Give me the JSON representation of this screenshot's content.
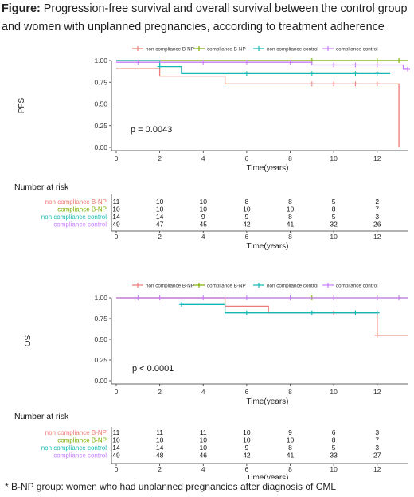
{
  "figure": {
    "caption_label": "Figure:",
    "caption_text": " Progression-free survival and overall survival between the control group and women with unplanned pregnancies, according to treatment adherence",
    "footnote": "* B-NP group: women who had unplanned pregnancies after diagnosis of CML"
  },
  "colors": {
    "non_compliance_bnp": "#f07a74",
    "compliance_bnp": "#7cae00",
    "non_compliance_control": "#14b8b3",
    "compliance_control": "#c77cff"
  },
  "chart_data": [
    {
      "type": "line",
      "ylabel": "PFS",
      "xlabel": "Time(years)",
      "xlim": [
        0,
        13.4
      ],
      "ylim": [
        0,
        1
      ],
      "yticks": [
        "0.00",
        "0.25",
        "0.50",
        "0.75",
        "1.00"
      ],
      "xticks": [
        "0",
        "2",
        "4",
        "6",
        "8",
        "10",
        "12"
      ],
      "annotation": "p = 0.0043",
      "legend": [
        "non compliance B-NP",
        "compliance B-NP",
        "non compliance control",
        "compliance control"
      ],
      "series": [
        {
          "name": "non compliance B-NP",
          "steps": [
            [
              0,
              0.91
            ],
            [
              2,
              0.91
            ],
            [
              2,
              0.82
            ],
            [
              5,
              0.82
            ],
            [
              5,
              0.73
            ],
            [
              13,
              0.73
            ],
            [
              13,
              0.0
            ]
          ],
          "censor": [
            [
              9,
              0.73
            ],
            [
              10,
              0.73
            ],
            [
              11,
              0.73
            ],
            [
              12,
              0.73
            ]
          ]
        },
        {
          "name": "compliance B-NP",
          "steps": [
            [
              0,
              1.0
            ],
            [
              13.4,
              1.0
            ]
          ],
          "censor": [
            [
              9,
              1.0
            ],
            [
              12,
              1.0
            ],
            [
              13,
              1.0
            ]
          ]
        },
        {
          "name": "non compliance control",
          "steps": [
            [
              0,
              1.0
            ],
            [
              2,
              1.0
            ],
            [
              2,
              0.93
            ],
            [
              3,
              0.93
            ],
            [
              3,
              0.85
            ],
            [
              12.6,
              0.85
            ]
          ],
          "censor": [
            [
              2,
              0.93
            ],
            [
              6,
              0.85
            ],
            [
              9,
              0.85
            ],
            [
              11,
              0.85
            ],
            [
              12,
              0.85
            ]
          ]
        },
        {
          "name": "compliance control",
          "steps": [
            [
              0,
              0.98
            ],
            [
              9,
              0.98
            ],
            [
              9,
              0.95
            ],
            [
              13.2,
              0.95
            ],
            [
              13.2,
              0.9
            ],
            [
              13.4,
              0.9
            ]
          ],
          "censor": [
            [
              1,
              0.98
            ],
            [
              4,
              0.98
            ],
            [
              6,
              0.98
            ],
            [
              8,
              0.98
            ],
            [
              10,
              0.95
            ],
            [
              11,
              0.95
            ],
            [
              12,
              0.95
            ],
            [
              13.4,
              0.9
            ]
          ]
        }
      ],
      "risk_table": {
        "title": "Number at risk",
        "xlabel": "Time(years)",
        "times": [
          "0",
          "2",
          "4",
          "6",
          "8",
          "10",
          "12"
        ],
        "rows": [
          {
            "label": "non compliance B-NP",
            "values": [
              "11",
              "10",
              "10",
              "8",
              "8",
              "5",
              "2"
            ]
          },
          {
            "label": "compliance B-NP",
            "values": [
              "10",
              "10",
              "10",
              "10",
              "10",
              "8",
              "7"
            ]
          },
          {
            "label": "non compliance control",
            "values": [
              "14",
              "14",
              "9",
              "9",
              "8",
              "5",
              "3"
            ]
          },
          {
            "label": "compliance control",
            "values": [
              "49",
              "47",
              "45",
              "42",
              "41",
              "32",
              "26"
            ]
          }
        ]
      }
    },
    {
      "type": "line",
      "ylabel": "OS",
      "xlabel": "Time(years)",
      "xlim": [
        0,
        13.4
      ],
      "ylim": [
        0,
        1
      ],
      "yticks": [
        "0.00",
        "0.25",
        "0.50",
        "0.75",
        "1.00"
      ],
      "xticks": [
        "0",
        "2",
        "4",
        "6",
        "8",
        "10",
        "12"
      ],
      "annotation": "p < 0.0001",
      "legend": [
        "non compliance B-NP",
        "compliance B-NP",
        "non compliance control",
        "compliance control"
      ],
      "series": [
        {
          "name": "non compliance B-NP",
          "steps": [
            [
              0,
              1.0
            ],
            [
              5,
              1.0
            ],
            [
              5,
              0.9
            ],
            [
              7,
              0.9
            ],
            [
              7,
              0.82
            ],
            [
              12,
              0.82
            ],
            [
              12,
              0.55
            ],
            [
              13.4,
              0.55
            ]
          ],
          "censor": [
            [
              10,
              0.82
            ],
            [
              11,
              0.82
            ],
            [
              12,
              0.55
            ]
          ]
        },
        {
          "name": "compliance B-NP",
          "steps": [
            [
              0,
              1.0
            ],
            [
              13.4,
              1.0
            ]
          ],
          "censor": [
            [
              9,
              1.0
            ],
            [
              12,
              1.0
            ],
            [
              13,
              1.0
            ]
          ]
        },
        {
          "name": "non compliance control",
          "steps": [
            [
              3,
              0.92
            ],
            [
              5,
              0.92
            ],
            [
              5,
              0.82
            ],
            [
              12,
              0.82
            ]
          ],
          "censor": [
            [
              3,
              0.92
            ],
            [
              6,
              0.82
            ],
            [
              9,
              0.82
            ],
            [
              11,
              0.82
            ],
            [
              12,
              0.82
            ]
          ]
        },
        {
          "name": "compliance control",
          "steps": [
            [
              0,
              1.0
            ],
            [
              13.4,
              1.0
            ]
          ],
          "censor": [
            [
              1,
              1.0
            ],
            [
              2,
              1.0
            ],
            [
              4,
              1.0
            ],
            [
              6,
              1.0
            ],
            [
              8,
              1.0
            ],
            [
              10,
              1.0
            ],
            [
              12,
              1.0
            ],
            [
              13,
              1.0
            ]
          ]
        }
      ],
      "risk_table": {
        "title": "Number at risk",
        "xlabel": "Time(years)",
        "times": [
          "0",
          "2",
          "4",
          "6",
          "8",
          "10",
          "12"
        ],
        "rows": [
          {
            "label": "non compliance B-NP",
            "values": [
              "11",
              "11",
              "11",
              "10",
              "9",
              "6",
              "3"
            ]
          },
          {
            "label": "compliance B-NP",
            "values": [
              "10",
              "10",
              "10",
              "10",
              "10",
              "8",
              "7"
            ]
          },
          {
            "label": "non compliance control",
            "values": [
              "14",
              "14",
              "10",
              "9",
              "8",
              "5",
              "3"
            ]
          },
          {
            "label": "compliance control",
            "values": [
              "49",
              "48",
              "46",
              "42",
              "41",
              "33",
              "27"
            ]
          }
        ]
      }
    }
  ]
}
